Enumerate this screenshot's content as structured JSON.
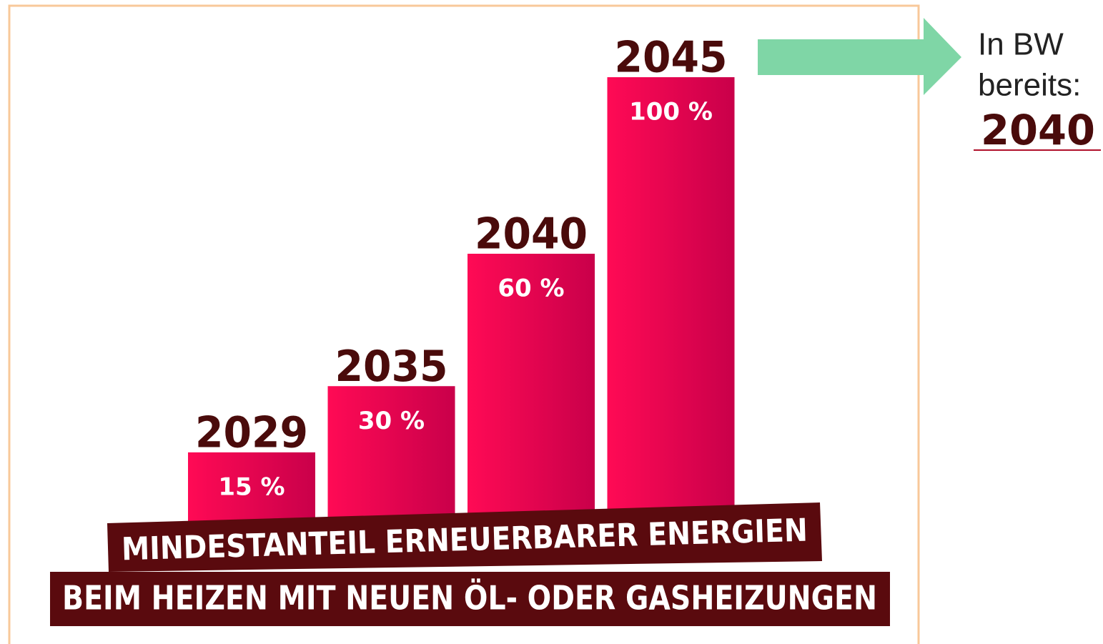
{
  "chart_data": {
    "type": "bar",
    "categories": [
      "2029",
      "2035",
      "2040",
      "2045"
    ],
    "values": [
      15,
      30,
      60,
      100
    ],
    "value_labels": [
      "15 %",
      "30 %",
      "60 %",
      "100 %"
    ],
    "color": "#e8064f",
    "banner": [
      "MINDESTANTEIL ERNEUERBARER ENERGIEN",
      "BEIM HEIZEN MIT NEUEN ÖL- ODER GASHEIZUNGEN"
    ],
    "annotation": {
      "lines": [
        "In BW",
        "bereits:"
      ],
      "year": "2040"
    }
  }
}
